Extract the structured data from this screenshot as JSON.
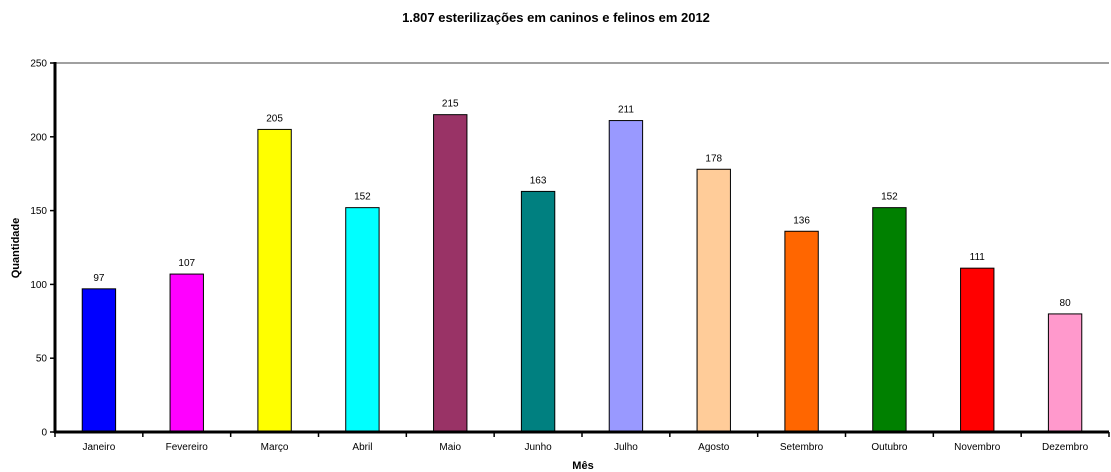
{
  "chart_data": {
    "type": "bar",
    "title": "1.807 esterilizações em caninos e felinos em 2012",
    "xlabel": "Mês",
    "ylabel": "Quantidade",
    "ylim": [
      0,
      250
    ],
    "yticks": [
      0,
      50,
      100,
      150,
      200,
      250
    ],
    "grid": false,
    "legend": "none",
    "categories": [
      "Janeiro",
      "Fevereiro",
      "Março",
      "Abril",
      "Maio",
      "Junho",
      "Julho",
      "Agosto",
      "Setembro",
      "Outubro",
      "Novembro",
      "Dezembro"
    ],
    "values": [
      97,
      107,
      205,
      152,
      215,
      163,
      211,
      178,
      136,
      152,
      111,
      80
    ],
    "colors": [
      "#0000ff",
      "#ff00ff",
      "#ffff00",
      "#00ffff",
      "#993366",
      "#008080",
      "#9999ff",
      "#ffcc99",
      "#ff6600",
      "#008000",
      "#ff0000",
      "#ff99cc"
    ]
  }
}
